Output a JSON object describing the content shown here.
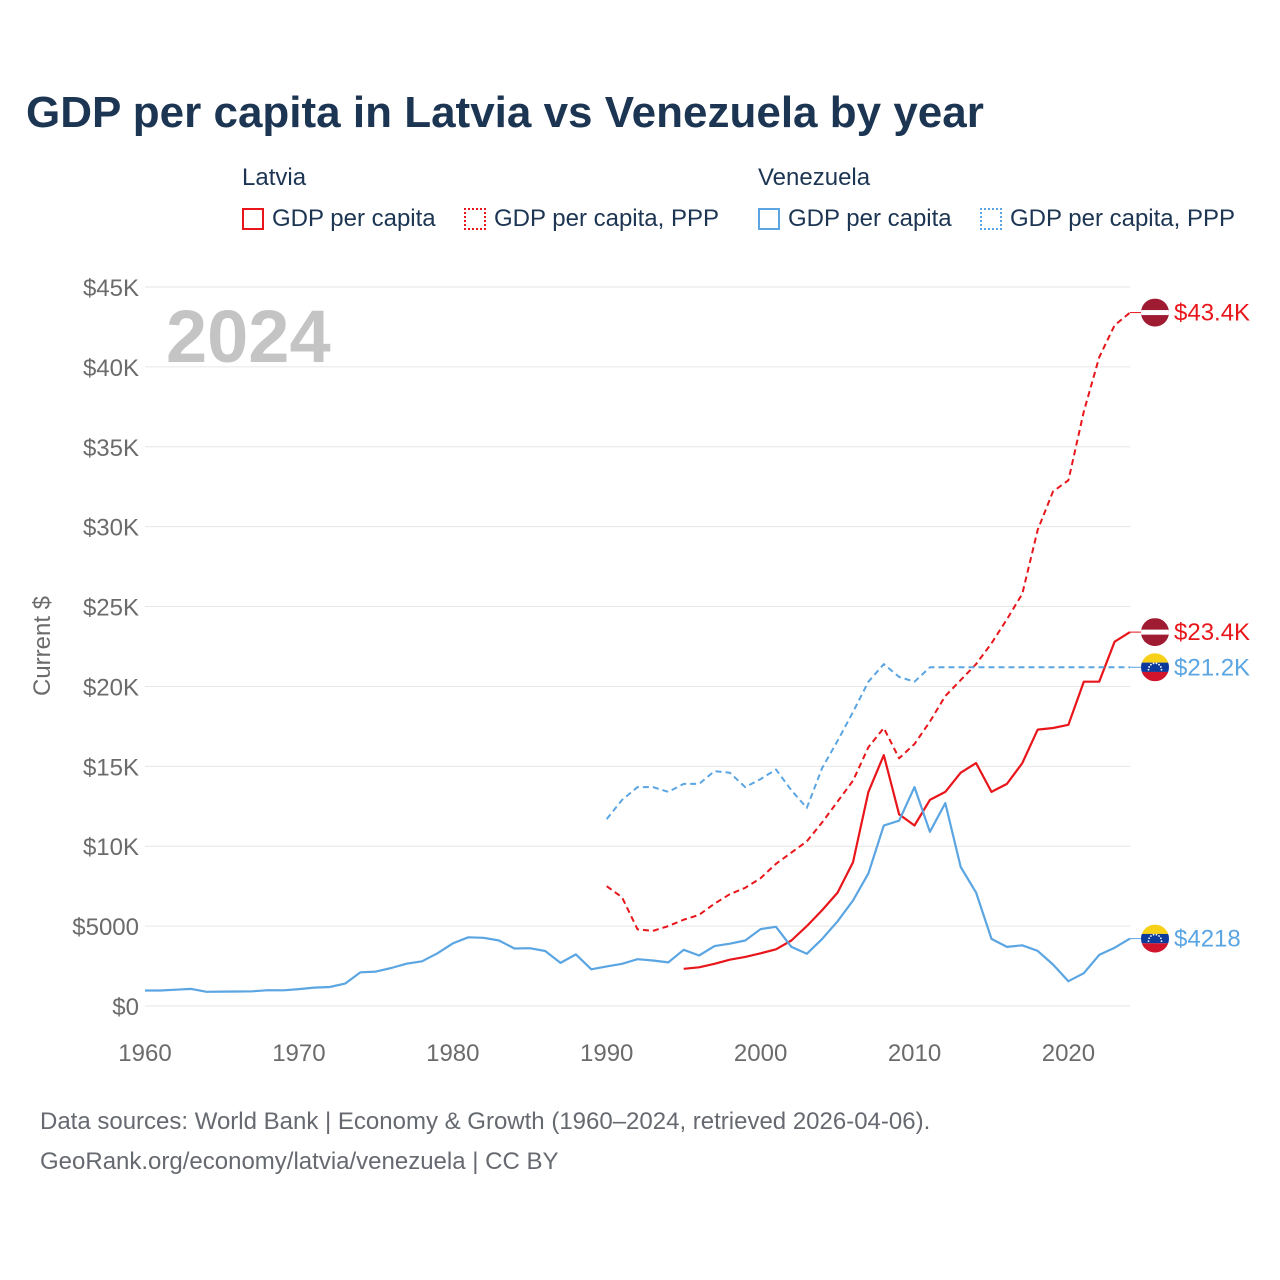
{
  "title": "GDP per capita in Latvia vs Venezuela by year",
  "legend": {
    "groups": [
      {
        "name": "Latvia",
        "items": [
          {
            "label": "GDP per capita",
            "color": "#e8161b",
            "style": "solid"
          },
          {
            "label": "GDP per capita, PPP",
            "color": "#e8161b",
            "style": "dotted"
          }
        ]
      },
      {
        "name": "Venezuela",
        "items": [
          {
            "label": "GDP per capita",
            "color": "#5aa5e2",
            "style": "solid"
          },
          {
            "label": "GDP per capita, PPP",
            "color": "#5aa5e2",
            "style": "dotted"
          }
        ]
      }
    ]
  },
  "footer": {
    "line1": "Data sources: World Bank | Economy & Growth (1960–2024, retrieved 2026-04-06).",
    "line2": "GeoRank.org/economy/latvia/venezuela | CC BY"
  },
  "chart_data": {
    "type": "line",
    "year_label": "2024",
    "ylabel": "Current $",
    "xlim": [
      1960,
      2024
    ],
    "ylim": [
      0,
      45000
    ],
    "x_ticks": [
      "1960",
      "1970",
      "1980",
      "1990",
      "2000",
      "2010",
      "2020"
    ],
    "x_tick_values": [
      1960,
      1970,
      1980,
      1990,
      2000,
      2010,
      2020
    ],
    "y_ticks": [
      "$0",
      "$5000",
      "$10K",
      "$15K",
      "$20K",
      "$25K",
      "$30K",
      "$35K",
      "$40K",
      "$45K"
    ],
    "y_tick_values": [
      0,
      5000,
      10000,
      15000,
      20000,
      25000,
      30000,
      35000,
      40000,
      45000
    ],
    "colors": {
      "latvia": "#e8161b",
      "venezuela": "#5aa5e2",
      "grid": "#e6e6e6",
      "tick": "#6b6b6b",
      "year": "#c4c4c4"
    },
    "series": [
      {
        "name": "Latvia GDP per capita",
        "country": "latvia",
        "dash": "solid",
        "x": [
          1995,
          1996,
          1997,
          1998,
          1999,
          2000,
          2001,
          2002,
          2003,
          2004,
          2005,
          2006,
          2007,
          2008,
          2009,
          2010,
          2011,
          2012,
          2013,
          2014,
          2015,
          2016,
          2017,
          2018,
          2019,
          2020,
          2021,
          2022,
          2023,
          2024
        ],
        "values": [
          2330,
          2420,
          2640,
          2900,
          3070,
          3300,
          3550,
          4100,
          5000,
          6000,
          7100,
          9000,
          13400,
          15700,
          12000,
          11300,
          12900,
          13400,
          14600,
          15200,
          13400,
          13900,
          15200,
          17300,
          17400,
          17600,
          20300,
          20300,
          22800,
          23400
        ],
        "end_label": "$23.4K"
      },
      {
        "name": "Latvia GDP per capita, PPP",
        "country": "latvia",
        "dash": "dashed",
        "x": [
          1990,
          1991,
          1992,
          1993,
          1994,
          1995,
          1996,
          1997,
          1998,
          1999,
          2000,
          2001,
          2002,
          2003,
          2004,
          2005,
          2006,
          2007,
          2008,
          2009,
          2010,
          2011,
          2012,
          2013,
          2014,
          2015,
          2016,
          2017,
          2018,
          2019,
          2020,
          2021,
          2022,
          2023,
          2024
        ],
        "values": [
          7500,
          6800,
          4800,
          4700,
          5000,
          5400,
          5700,
          6400,
          7000,
          7400,
          8000,
          8900,
          9600,
          10300,
          11500,
          12800,
          14100,
          16200,
          17400,
          15500,
          16400,
          17800,
          19400,
          20400,
          21400,
          22700,
          24200,
          25800,
          29800,
          32200,
          32900,
          37200,
          40600,
          42600,
          43400
        ],
        "end_label": "$43.4K"
      },
      {
        "name": "Venezuela GDP per capita",
        "country": "venezuela",
        "dash": "solid",
        "x": [
          1960,
          1961,
          1962,
          1963,
          1964,
          1965,
          1966,
          1967,
          1968,
          1969,
          1970,
          1971,
          1972,
          1973,
          1974,
          1975,
          1976,
          1977,
          1978,
          1979,
          1980,
          1981,
          1982,
          1983,
          1984,
          1985,
          1986,
          1987,
          1988,
          1989,
          1990,
          1991,
          1992,
          1993,
          1994,
          1995,
          1996,
          1997,
          1998,
          1999,
          2000,
          2001,
          2002,
          2003,
          2004,
          2005,
          2006,
          2007,
          2008,
          2009,
          2010,
          2011,
          2012,
          2013,
          2014,
          2015,
          2016,
          2017,
          2018,
          2019,
          2020,
          2021,
          2022,
          2023,
          2024
        ],
        "values": [
          970,
          970,
          1020,
          1070,
          890,
          900,
          910,
          920,
          990,
          980,
          1060,
          1150,
          1190,
          1400,
          2110,
          2150,
          2380,
          2650,
          2800,
          3300,
          3920,
          4300,
          4270,
          4100,
          3600,
          3620,
          3440,
          2700,
          3230,
          2300,
          2480,
          2640,
          2930,
          2850,
          2730,
          3520,
          3160,
          3750,
          3900,
          4100,
          4810,
          4960,
          3700,
          3270,
          4200,
          5300,
          6600,
          8300,
          11300,
          11600,
          13700,
          10900,
          12700,
          8700,
          7100,
          4200,
          3700,
          3800,
          3450,
          2600,
          1550,
          2050,
          3200,
          3650,
          4218
        ],
        "end_label": "$4218"
      },
      {
        "name": "Venezuela GDP per capita, PPP",
        "country": "venezuela",
        "dash": "dashed",
        "x": [
          1990,
          1991,
          1992,
          1993,
          1994,
          1995,
          1996,
          1997,
          1998,
          1999,
          2000,
          2001,
          2002,
          2003,
          2004,
          2005,
          2006,
          2007,
          2008,
          2009,
          2010,
          2011,
          2012,
          2013,
          2014,
          2015,
          2016,
          2017,
          2018,
          2019,
          2020,
          2021,
          2022,
          2023,
          2024
        ],
        "values": [
          11700,
          12900,
          13700,
          13700,
          13400,
          13900,
          13900,
          14700,
          14600,
          13700,
          14200,
          14800,
          13500,
          12400,
          14900,
          16600,
          18400,
          20300,
          21400,
          20600,
          20300,
          21200,
          21200,
          21200,
          21200,
          21200,
          21200,
          21200,
          21200,
          21200,
          21200,
          21200,
          21200,
          21200,
          21200
        ],
        "end_label": "$21.2K"
      }
    ]
  }
}
